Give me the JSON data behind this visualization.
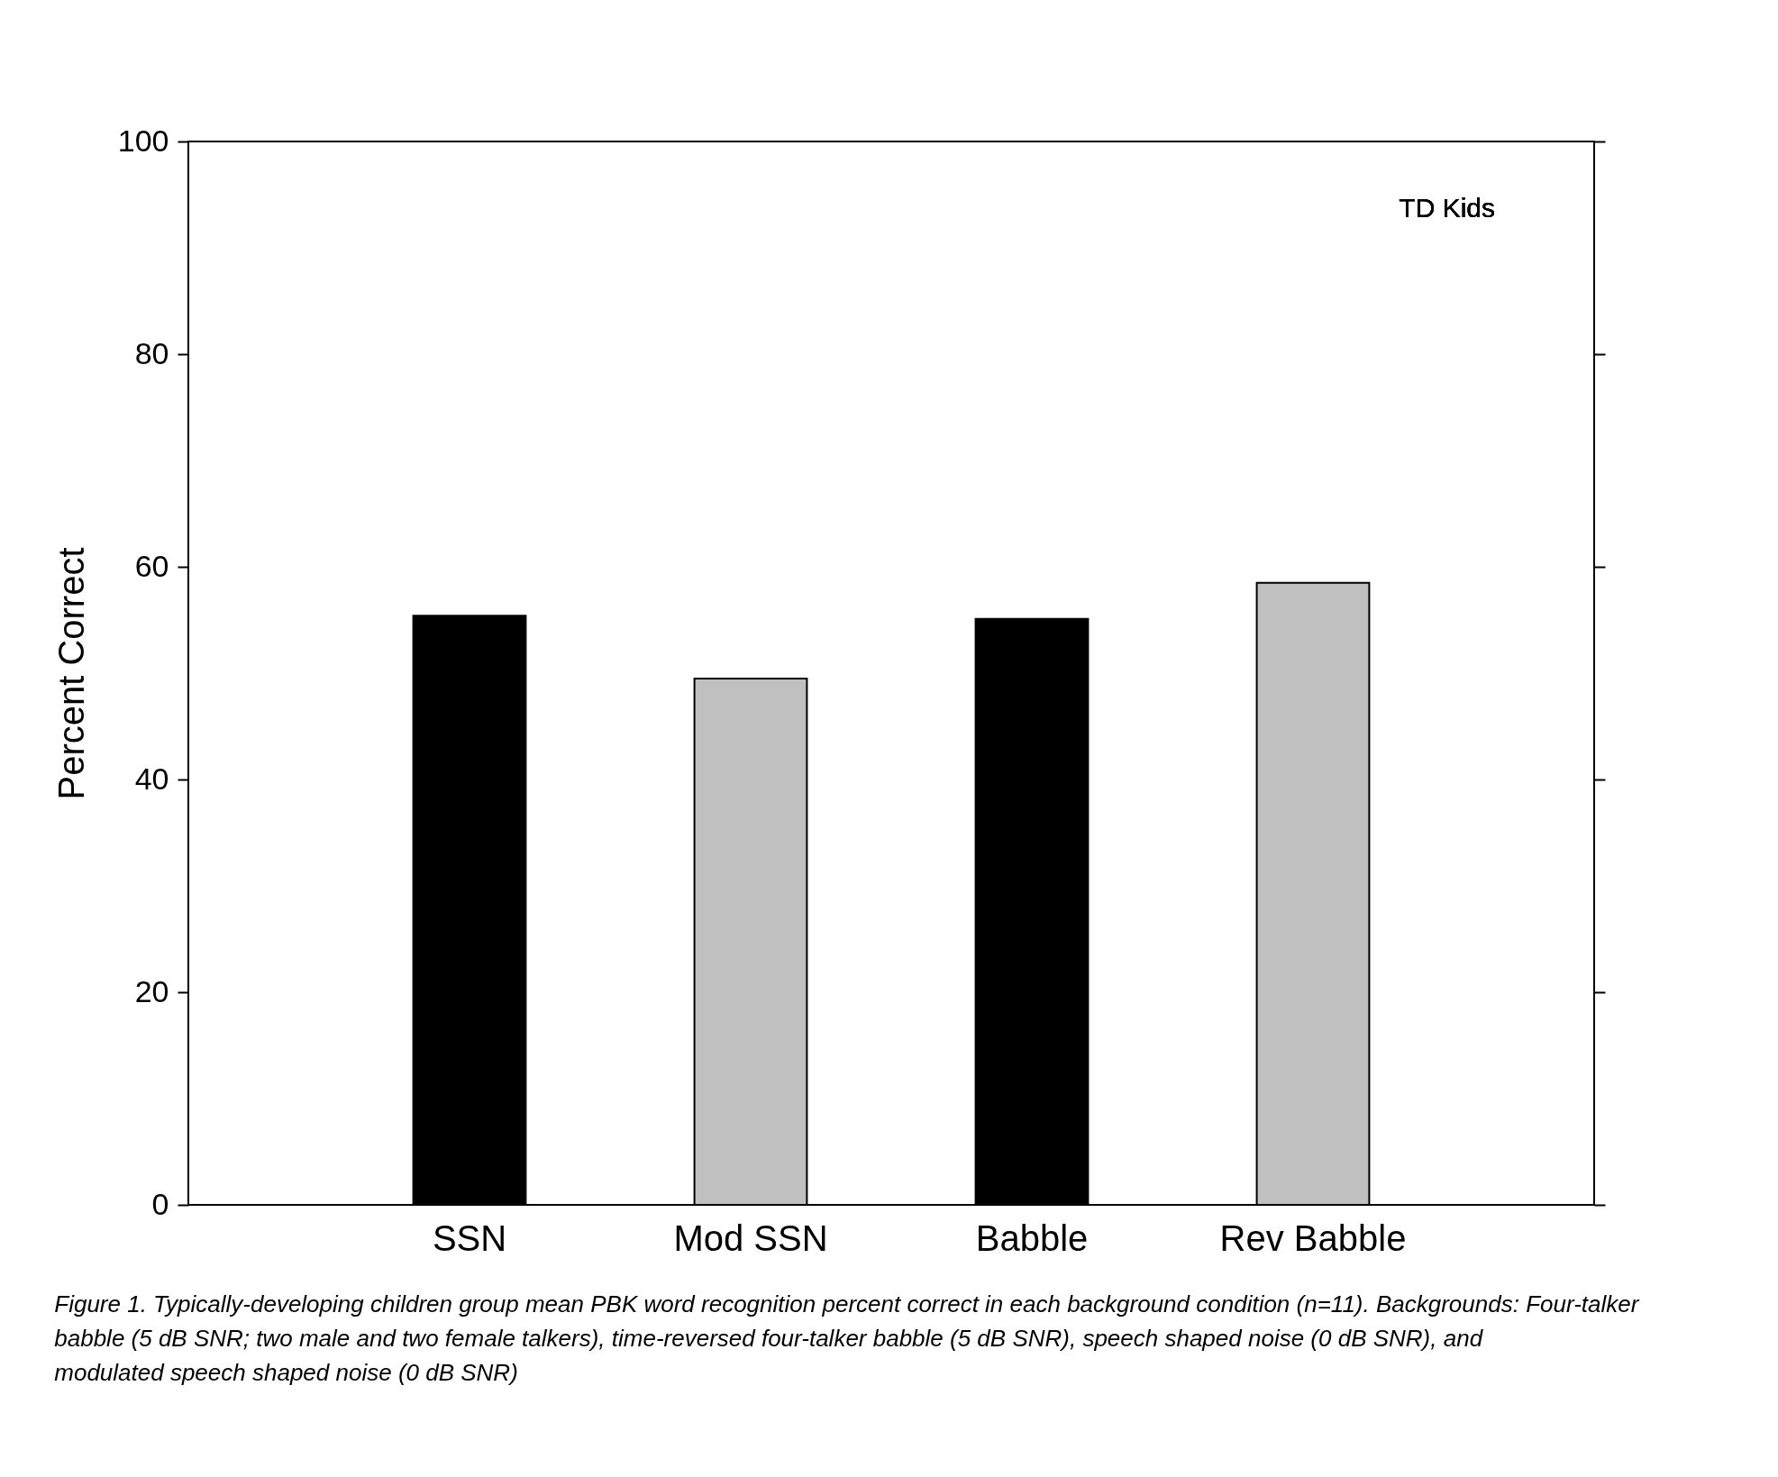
{
  "chart_data": {
    "type": "bar",
    "categories": [
      "SSN",
      "Mod SSN",
      "Babble",
      "Rev Babble"
    ],
    "values": [
      55.4,
      49.5,
      55.1,
      58.5
    ],
    "colors": [
      "#000000",
      "#c0c0c0",
      "#000000",
      "#c0c0c0"
    ],
    "ylabel": "Percent Correct",
    "ylim": [
      0,
      100
    ],
    "yticks": [
      0,
      20,
      40,
      60,
      80,
      100
    ],
    "grid": false,
    "annotations": [
      "TD Kids",
      "Figure 1. Typically-developing children group mean PBK word recognition percent correct in each background condition (n=11). Backgrounds: Four-talker babble (5 dB SNR; two male and two female talkers), time-reversed four-talker babble (5 dB SNR), speech shaped noise (0 dB SNR), and modulated speech shaped noise (0 dB SNR)"
    ]
  }
}
